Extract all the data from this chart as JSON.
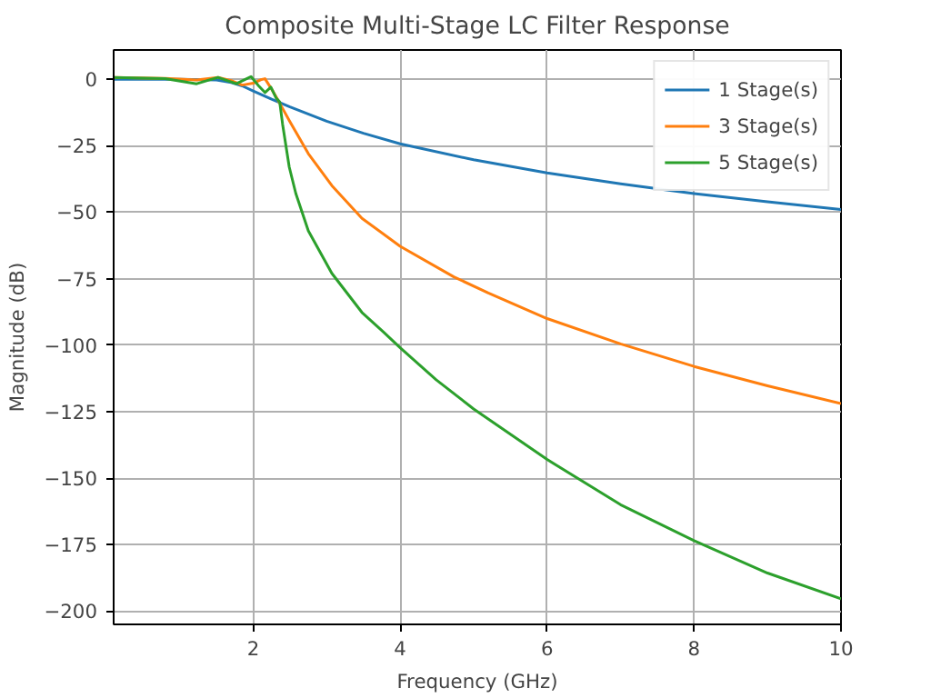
{
  "chart_data": {
    "type": "line",
    "title": "Composite Multi-Stage LC Filter Response",
    "xlabel": "Frequency (GHz)",
    "ylabel": "Magnitude (dB)",
    "xlim": [
      0.1,
      10
    ],
    "ylim": [
      -205,
      11
    ],
    "xticks": [
      2,
      4,
      6,
      8,
      10
    ],
    "yticks": [
      0,
      -25,
      -50,
      -75,
      -100,
      -125,
      -150,
      -175,
      -200
    ],
    "grid": true,
    "legend": "top right",
    "line_style": "solid",
    "marker": "none",
    "series": [
      {
        "name": "1 Stage(s)",
        "color": "#1f77b4",
        "x": [
          0.1,
          0.5,
          1.0,
          1.5,
          1.7,
          1.85,
          2.0,
          2.25,
          2.5,
          3,
          3.5,
          4,
          5,
          6,
          7,
          8,
          9,
          10
        ],
        "values": [
          0,
          0,
          0,
          -0.3,
          -1.2,
          -2.5,
          -4.4,
          -7.5,
          -10.4,
          -15.8,
          -20.3,
          -24.3,
          -30.3,
          -35.2,
          -39.3,
          -43,
          -46.1,
          -49
        ]
      },
      {
        "name": "3 Stage(s)",
        "color": "#ff7f0e",
        "x": [
          0.1,
          0.8,
          1.23,
          1.52,
          1.7,
          1.85,
          2.0,
          2.1,
          2.16,
          2.27,
          2.32,
          2.4,
          2.5,
          2.75,
          3.07,
          3.48,
          4,
          4.73,
          5.2,
          6,
          7,
          8,
          9,
          10
        ],
        "values": [
          0.7,
          0.3,
          -0.3,
          0.7,
          -0.5,
          -2.2,
          -1.5,
          -0.2,
          0.2,
          -4.6,
          -7,
          -11,
          -16,
          -28,
          -40,
          -52.3,
          -62.8,
          -74.3,
          -80.4,
          -90,
          -99.5,
          -108,
          -115.3,
          -122
        ]
      },
      {
        "name": "5 Stage(s)",
        "color": "#2ca02c",
        "x": [
          0.1,
          0.8,
          1.23,
          1.52,
          1.77,
          1.91,
          1.97,
          2.08,
          2.16,
          2.24,
          2.31,
          2.36,
          2.4,
          2.49,
          2.58,
          2.75,
          3.07,
          3.48,
          3.77,
          4,
          4.49,
          5,
          6,
          7,
          8,
          9,
          10
        ],
        "values": [
          0.7,
          0.2,
          -1.7,
          0.7,
          -1.7,
          0.2,
          1,
          -2.7,
          -5,
          -3,
          -7,
          -8.5,
          -17,
          -33,
          -43,
          -57,
          -73,
          -87.7,
          -95,
          -101,
          -113,
          -124,
          -143,
          -160,
          -173.5,
          -185.7,
          -195.4
        ]
      }
    ]
  }
}
